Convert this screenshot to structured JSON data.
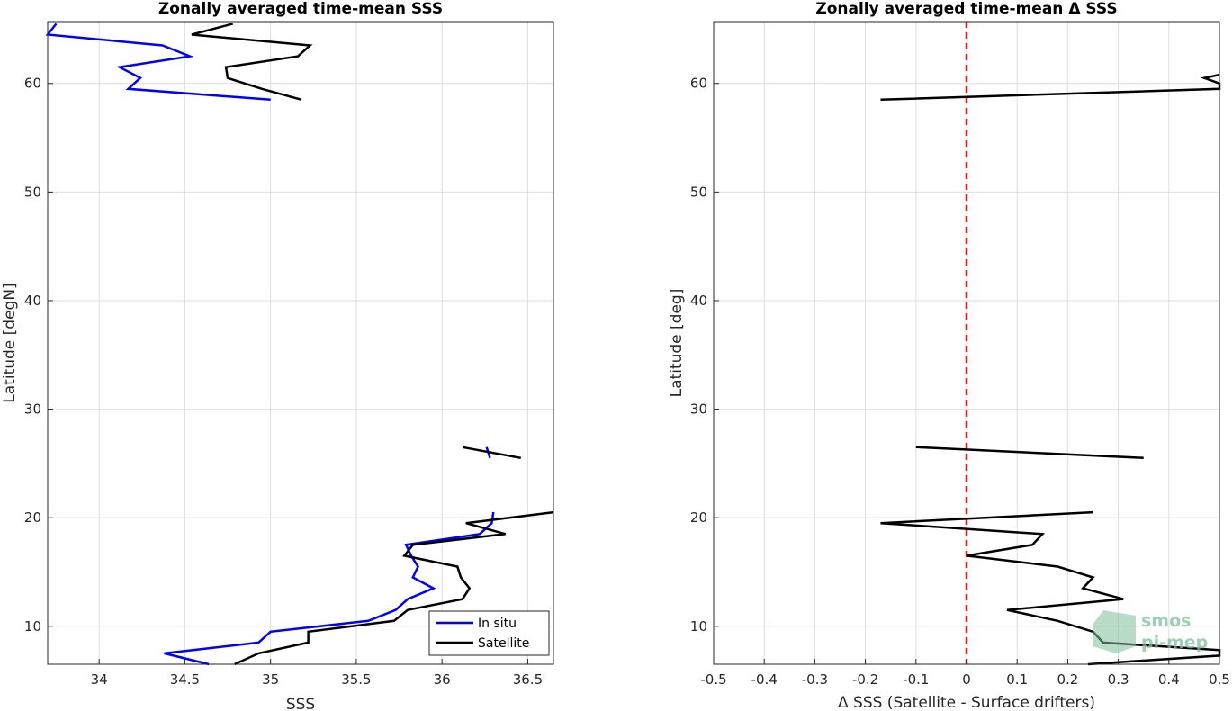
{
  "chart_data": [
    {
      "type": "line",
      "title": "Zonally averaged time-mean SSS",
      "xlabel": "SSS",
      "ylabel": "Latitude [degN]",
      "xlim": [
        33.7,
        36.65
      ],
      "ylim": [
        6.5,
        65.7
      ],
      "xticks": [
        34,
        34.5,
        35,
        35.5,
        36,
        36.5
      ],
      "xtick_labels": [
        "34",
        "34.5",
        "35",
        "35.5",
        "36",
        "36.5"
      ],
      "yticks": [
        10,
        20,
        30,
        40,
        50,
        60
      ],
      "ytick_labels": [
        "10",
        "20",
        "30",
        "40",
        "50",
        "60"
      ],
      "grid": true,
      "legend": {
        "location": "bottom-right",
        "entries": [
          "In situ",
          "Satellite"
        ]
      },
      "series": [
        {
          "name": "In situ",
          "color": "#0000ff",
          "segments": [
            [
              [
                33.75,
                65.5
              ],
              [
                33.7,
                64.5
              ],
              [
                34.37,
                63.5
              ],
              [
                34.53,
                62.5
              ],
              [
                34.12,
                61.5
              ],
              [
                34.24,
                60.5
              ],
              [
                34.17,
                59.5
              ],
              [
                35.0,
                58.5
              ]
            ],
            [
              [
                36.26,
                26.5
              ],
              [
                36.28,
                25.5
              ]
            ],
            [
              [
                36.3,
                20.5
              ],
              [
                36.29,
                19.5
              ],
              [
                36.22,
                18.5
              ],
              [
                35.79,
                17.5
              ],
              [
                35.82,
                16.5
              ],
              [
                35.86,
                15.5
              ],
              [
                35.83,
                14.5
              ],
              [
                35.95,
                13.5
              ],
              [
                35.8,
                12.5
              ],
              [
                35.73,
                11.5
              ],
              [
                35.57,
                10.5
              ],
              [
                35.0,
                9.5
              ],
              [
                34.93,
                8.5
              ],
              [
                34.38,
                7.5
              ],
              [
                34.64,
                6.5
              ]
            ]
          ]
        },
        {
          "name": "Satellite",
          "color": "#000000",
          "segments": [
            [
              [
                34.78,
                65.5
              ],
              [
                34.54,
                64.5
              ],
              [
                35.23,
                63.5
              ],
              [
                35.16,
                62.5
              ],
              [
                34.74,
                61.5
              ],
              [
                34.75,
                60.5
              ],
              [
                34.95,
                59.5
              ],
              [
                35.18,
                58.5
              ]
            ],
            [
              [
                36.12,
                26.5
              ],
              [
                36.46,
                25.5
              ]
            ],
            [
              [
                36.65,
                20.5
              ],
              [
                36.14,
                19.5
              ],
              [
                36.37,
                18.5
              ],
              [
                35.83,
                17.5
              ],
              [
                35.78,
                16.5
              ],
              [
                36.09,
                15.5
              ],
              [
                36.11,
                14.5
              ],
              [
                36.16,
                13.5
              ],
              [
                36.12,
                12.5
              ],
              [
                35.8,
                11.5
              ],
              [
                35.72,
                10.5
              ],
              [
                35.22,
                9.5
              ],
              [
                35.22,
                8.5
              ],
              [
                34.93,
                7.5
              ],
              [
                34.79,
                6.5
              ]
            ]
          ]
        }
      ]
    },
    {
      "type": "line",
      "title": "Zonally averaged time-mean Δ SSS",
      "xlabel": "Δ SSS (Satellite - Surface drifters)",
      "ylabel": "Latitude [deg]",
      "xlim": [
        -0.5,
        0.5
      ],
      "ylim": [
        6.5,
        65.7
      ],
      "xticks": [
        -0.5,
        -0.4,
        -0.3,
        -0.2,
        -0.1,
        0,
        0.1,
        0.2,
        0.3,
        0.4,
        0.5
      ],
      "xtick_labels": [
        "-0.5",
        "-0.4",
        "-0.3",
        "-0.2",
        "-0.1",
        "0",
        "0.1",
        "0.2",
        "0.3",
        "0.4",
        "0.5"
      ],
      "yticks": [
        10,
        20,
        30,
        40,
        50,
        60
      ],
      "ytick_labels": [
        "10",
        "20",
        "30",
        "40",
        "50",
        "60"
      ],
      "grid": true,
      "reference_line": {
        "x": 0,
        "color": "#e8191a",
        "style": "dashed"
      },
      "series": [
        {
          "color": "#000000",
          "segments": [
            [
              [
                0.5,
                60.8
              ],
              [
                0.47,
                60.5
              ],
              [
                0.5,
                60.0
              ],
              [
                0.5,
                59.5
              ],
              [
                -0.17,
                58.5
              ]
            ],
            [
              [
                -0.1,
                26.5
              ],
              [
                0.35,
                25.5
              ]
            ],
            [
              [
                0.25,
                20.5
              ],
              [
                -0.17,
                19.5
              ],
              [
                0.15,
                18.5
              ],
              [
                0.13,
                17.5
              ],
              [
                0.0,
                16.5
              ],
              [
                0.18,
                15.5
              ],
              [
                0.25,
                14.5
              ],
              [
                0.23,
                13.5
              ],
              [
                0.31,
                12.5
              ],
              [
                0.08,
                11.5
              ],
              [
                0.18,
                10.5
              ],
              [
                0.25,
                9.5
              ],
              [
                0.27,
                8.5
              ],
              [
                0.5,
                7.8
              ],
              [
                0.5,
                7.3
              ],
              [
                0.24,
                6.5
              ]
            ]
          ]
        }
      ]
    }
  ],
  "watermark": {
    "line1": "smos",
    "line2": "pi-mep",
    "color": "#7fc09a"
  }
}
